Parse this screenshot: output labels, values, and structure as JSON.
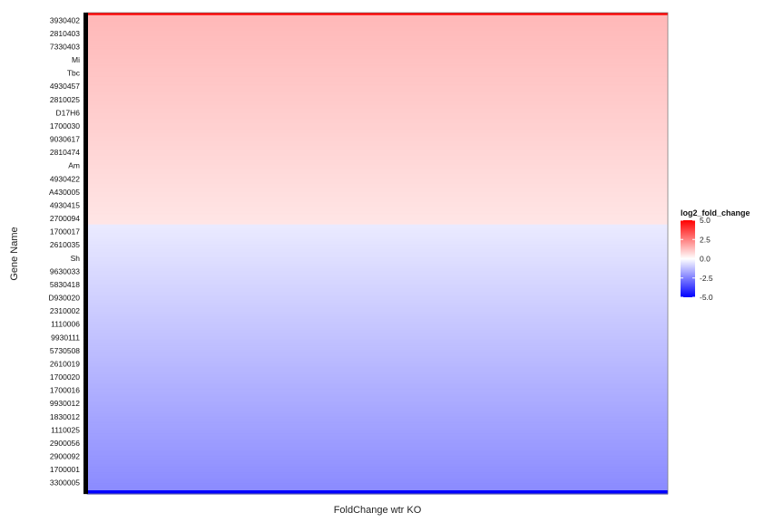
{
  "chart_data": {
    "type": "heatmap",
    "title": "",
    "xlabel": "FoldChange wtr KO",
    "ylabel": "Gene Name",
    "x_categories": [
      ""
    ],
    "row_count": 400,
    "rows_sorted": "descending",
    "value_range": [
      -5.0,
      5.0
    ],
    "grid": false,
    "colorbar": {
      "title": "log2_fold_change",
      "ticks": [
        "5.0",
        "2.5",
        "0.0",
        "-2.5",
        "-5.0"
      ],
      "tick_values": [
        5.0,
        2.5,
        0.0,
        -2.5,
        -5.0
      ],
      "low_color": "#0000ff",
      "mid_color": "#ffffff",
      "high_color": "#ff0000",
      "placement": "right"
    },
    "visible_gene_labels": [
      "3930402",
      "2810403",
      "7330403",
      "Mi",
      "Tbc",
      "4930457",
      "2810025",
      "D17H6",
      "1700030",
      "9030617",
      "2810474",
      "Am",
      "4930422",
      "A430005",
      "4930415",
      "2700094",
      "1700017",
      "2610035",
      "Sh",
      "9630033",
      "5830418",
      "D930020",
      "2310002",
      "1110006",
      "9930111",
      "5730508",
      "2610019",
      "1700020",
      "1700016",
      "9930012",
      "1830012",
      "1110025",
      "2900056",
      "2900092",
      "1700001",
      "3300005"
    ]
  }
}
